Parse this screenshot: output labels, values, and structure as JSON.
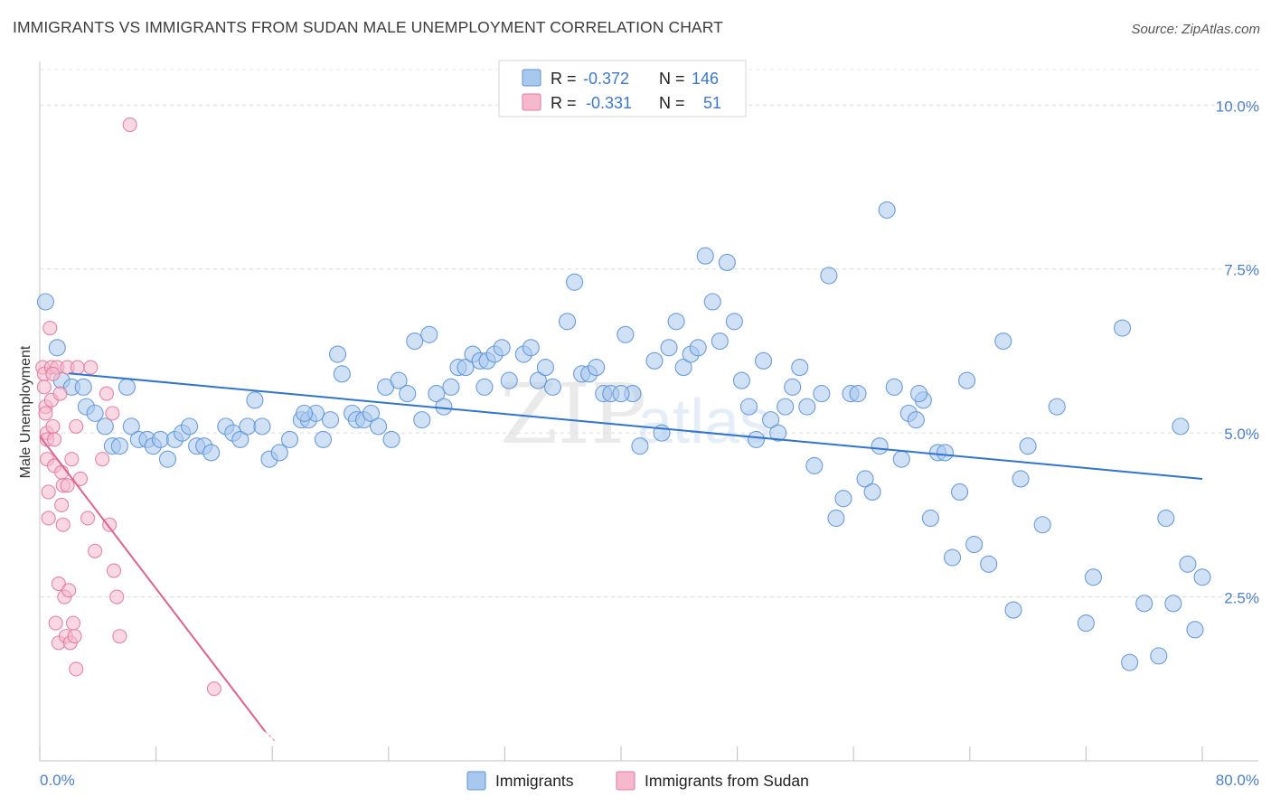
{
  "title": "IMMIGRANTS VS IMMIGRANTS FROM SUDAN MALE UNEMPLOYMENT CORRELATION CHART",
  "source": "Source: ZipAtlas.com",
  "colors": {
    "blue": "#5b93d8",
    "blue_fill": "#a9c8ee",
    "blue_line": "#2f74d0",
    "pink": "#e2789c",
    "pink_fill": "#f5b8cc",
    "pink_line": "#e0628e",
    "tick_text": "#4a7fcf"
  },
  "legend": {
    "rows": [
      {
        "r_label": "R =",
        "r_value": "-0.372",
        "n_label": "N =",
        "n_value": "146"
      },
      {
        "r_label": "R =",
        "r_value": "-0.331",
        "n_label": "N =",
        "n_value": "51"
      }
    ]
  },
  "bottom_legend": [
    "Immigrants",
    "Immigrants from Sudan"
  ],
  "watermark": {
    "zip": "ZIP",
    "atlas": "atlas"
  },
  "chart_data": {
    "type": "scatter",
    "xlabel": "",
    "ylabel": "Male Unemployment",
    "xlim": [
      0,
      80
    ],
    "ylim": [
      0,
      10.5
    ],
    "x_tick_labels": [
      "0.0%",
      "80.0%"
    ],
    "y_ticks": [
      2.5,
      5.0,
      7.5,
      10.0
    ],
    "y_tick_labels": [
      "2.5%",
      "5.0%",
      "7.5%",
      "10.0%"
    ],
    "grid": true,
    "legend_position": "top-center",
    "series": [
      {
        "name": "Immigrants",
        "trend": {
          "x": [
            0,
            80
          ],
          "y": [
            5.95,
            4.3
          ]
        },
        "points": [
          [
            0.4,
            7.0
          ],
          [
            1.2,
            6.3
          ],
          [
            1.5,
            5.8
          ],
          [
            2.2,
            5.7
          ],
          [
            3.2,
            5.4
          ],
          [
            3.8,
            5.3
          ],
          [
            4.5,
            5.1
          ],
          [
            5.0,
            4.8
          ],
          [
            5.5,
            4.8
          ],
          [
            6.0,
            5.7
          ],
          [
            6.3,
            5.1
          ],
          [
            6.8,
            4.9
          ],
          [
            7.4,
            4.9
          ],
          [
            7.8,
            4.8
          ],
          [
            8.3,
            4.9
          ],
          [
            8.8,
            4.6
          ],
          [
            9.3,
            4.9
          ],
          [
            9.8,
            5.0
          ],
          [
            10.3,
            5.1
          ],
          [
            10.8,
            4.8
          ],
          [
            11.3,
            4.8
          ],
          [
            11.8,
            4.7
          ],
          [
            12.8,
            5.1
          ],
          [
            13.3,
            5.0
          ],
          [
            13.8,
            4.9
          ],
          [
            14.3,
            5.1
          ],
          [
            14.8,
            5.5
          ],
          [
            15.3,
            5.1
          ],
          [
            15.8,
            4.6
          ],
          [
            16.5,
            4.7
          ],
          [
            17.2,
            4.9
          ],
          [
            18.0,
            5.2
          ],
          [
            18.5,
            5.2
          ],
          [
            19.0,
            5.3
          ],
          [
            19.5,
            4.9
          ],
          [
            20.0,
            5.2
          ],
          [
            20.5,
            6.2
          ],
          [
            20.8,
            5.9
          ],
          [
            21.5,
            5.3
          ],
          [
            21.8,
            5.2
          ],
          [
            22.3,
            5.2
          ],
          [
            22.8,
            5.3
          ],
          [
            23.3,
            5.1
          ],
          [
            23.8,
            5.7
          ],
          [
            24.2,
            4.9
          ],
          [
            24.7,
            5.8
          ],
          [
            25.3,
            5.6
          ],
          [
            25.8,
            6.4
          ],
          [
            26.3,
            5.2
          ],
          [
            26.8,
            6.5
          ],
          [
            27.3,
            5.6
          ],
          [
            27.8,
            5.4
          ],
          [
            28.3,
            5.7
          ],
          [
            28.8,
            6.0
          ],
          [
            29.3,
            6.0
          ],
          [
            29.8,
            6.2
          ],
          [
            30.3,
            6.1
          ],
          [
            30.8,
            6.1
          ],
          [
            31.3,
            6.2
          ],
          [
            31.8,
            6.3
          ],
          [
            32.3,
            5.8
          ],
          [
            33.3,
            6.2
          ],
          [
            33.8,
            6.3
          ],
          [
            34.3,
            5.8
          ],
          [
            34.8,
            6.0
          ],
          [
            35.3,
            5.7
          ],
          [
            36.3,
            6.7
          ],
          [
            36.8,
            7.3
          ],
          [
            37.3,
            5.9
          ],
          [
            37.8,
            5.9
          ],
          [
            38.3,
            6.0
          ],
          [
            38.8,
            5.6
          ],
          [
            39.3,
            5.6
          ],
          [
            40.3,
            6.5
          ],
          [
            40.8,
            5.6
          ],
          [
            41.3,
            4.8
          ],
          [
            42.3,
            6.1
          ],
          [
            42.8,
            5.0
          ],
          [
            43.3,
            6.3
          ],
          [
            43.8,
            6.7
          ],
          [
            44.3,
            6.0
          ],
          [
            44.8,
            6.2
          ],
          [
            45.3,
            6.3
          ],
          [
            45.8,
            7.7
          ],
          [
            46.3,
            7.0
          ],
          [
            46.8,
            6.4
          ],
          [
            47.3,
            7.6
          ],
          [
            47.8,
            6.7
          ],
          [
            48.3,
            5.8
          ],
          [
            48.8,
            5.4
          ],
          [
            49.3,
            4.9
          ],
          [
            49.8,
            6.1
          ],
          [
            50.3,
            5.2
          ],
          [
            50.8,
            5.0
          ],
          [
            51.3,
            5.4
          ],
          [
            51.8,
            5.7
          ],
          [
            52.3,
            6.0
          ],
          [
            52.8,
            5.4
          ],
          [
            53.3,
            4.5
          ],
          [
            53.8,
            5.6
          ],
          [
            54.3,
            7.4
          ],
          [
            54.8,
            3.7
          ],
          [
            55.3,
            4.0
          ],
          [
            55.8,
            5.6
          ],
          [
            56.3,
            5.6
          ],
          [
            56.8,
            4.3
          ],
          [
            57.3,
            4.1
          ],
          [
            57.8,
            4.8
          ],
          [
            58.3,
            8.4
          ],
          [
            58.8,
            5.7
          ],
          [
            59.3,
            4.6
          ],
          [
            59.8,
            5.3
          ],
          [
            60.3,
            5.2
          ],
          [
            60.8,
            5.5
          ],
          [
            61.3,
            3.7
          ],
          [
            61.8,
            4.7
          ],
          [
            62.3,
            4.7
          ],
          [
            62.8,
            3.1
          ],
          [
            63.3,
            4.1
          ],
          [
            63.8,
            5.8
          ],
          [
            64.3,
            3.3
          ],
          [
            65.3,
            3.0
          ],
          [
            66.3,
            6.4
          ],
          [
            67.0,
            2.3
          ],
          [
            67.5,
            4.3
          ],
          [
            68.0,
            4.8
          ],
          [
            69.0,
            3.6
          ],
          [
            70.0,
            5.4
          ],
          [
            72.0,
            2.1
          ],
          [
            72.5,
            2.8
          ],
          [
            74.5,
            6.6
          ],
          [
            75.0,
            1.5
          ],
          [
            76.0,
            2.4
          ],
          [
            77.0,
            1.6
          ],
          [
            77.5,
            3.7
          ],
          [
            78.0,
            2.4
          ],
          [
            78.5,
            5.1
          ],
          [
            79.0,
            3.0
          ],
          [
            79.5,
            2.0
          ],
          [
            80.0,
            2.8
          ],
          [
            83.0,
            2.9
          ],
          [
            3.0,
            5.7
          ],
          [
            18.2,
            5.3
          ],
          [
            30.6,
            5.7
          ],
          [
            40.0,
            5.6
          ],
          [
            60.5,
            5.6
          ]
        ]
      },
      {
        "name": "Immigrants from Sudan",
        "trend": {
          "x": [
            0,
            15.5
          ],
          "y": [
            4.95,
            0.45
          ],
          "dash_to": [
            16.2,
            0.3
          ]
        },
        "points": [
          [
            0.2,
            6.0
          ],
          [
            0.3,
            5.9
          ],
          [
            0.3,
            5.7
          ],
          [
            0.4,
            5.4
          ],
          [
            0.4,
            5.3
          ],
          [
            0.5,
            5.0
          ],
          [
            0.5,
            4.9
          ],
          [
            0.5,
            4.6
          ],
          [
            0.6,
            4.1
          ],
          [
            0.6,
            3.7
          ],
          [
            0.7,
            6.6
          ],
          [
            0.8,
            6.0
          ],
          [
            0.8,
            5.5
          ],
          [
            0.9,
            5.1
          ],
          [
            1.0,
            4.9
          ],
          [
            1.0,
            4.5
          ],
          [
            1.1,
            2.1
          ],
          [
            1.2,
            6.0
          ],
          [
            1.3,
            1.8
          ],
          [
            1.3,
            2.7
          ],
          [
            1.4,
            5.6
          ],
          [
            1.5,
            4.4
          ],
          [
            1.5,
            3.9
          ],
          [
            1.6,
            3.6
          ],
          [
            1.6,
            4.2
          ],
          [
            1.7,
            2.5
          ],
          [
            1.8,
            1.9
          ],
          [
            1.9,
            4.2
          ],
          [
            1.9,
            6.0
          ],
          [
            2.0,
            2.6
          ],
          [
            2.1,
            1.8
          ],
          [
            2.2,
            4.6
          ],
          [
            2.3,
            2.1
          ],
          [
            2.4,
            1.9
          ],
          [
            2.5,
            5.1
          ],
          [
            2.5,
            1.4
          ],
          [
            2.6,
            6.0
          ],
          [
            2.8,
            4.3
          ],
          [
            3.3,
            3.7
          ],
          [
            3.5,
            6.0
          ],
          [
            3.8,
            3.2
          ],
          [
            4.3,
            4.6
          ],
          [
            4.6,
            5.6
          ],
          [
            4.8,
            3.6
          ],
          [
            5.0,
            5.3
          ],
          [
            5.1,
            2.9
          ],
          [
            5.3,
            2.5
          ],
          [
            5.5,
            1.9
          ],
          [
            6.2,
            9.7
          ],
          [
            12.0,
            1.1
          ],
          [
            0.9,
            5.9
          ]
        ]
      }
    ]
  }
}
